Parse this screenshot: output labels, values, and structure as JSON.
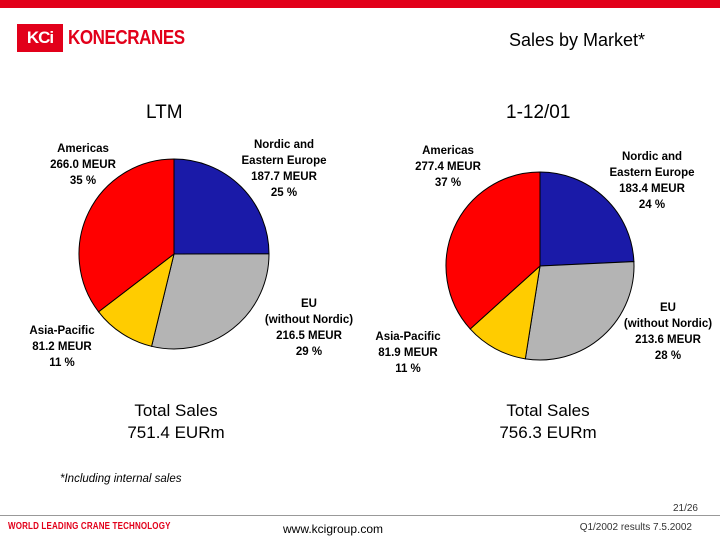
{
  "header": {
    "logo_mark": "KCi",
    "logo_text": "KONECRANES",
    "title": "Sales by Market*"
  },
  "chart_data": [
    {
      "type": "pie",
      "title": "LTM",
      "categories": [
        "Nordic and Eastern Europe",
        "EU (without Nordic)",
        "Asia-Pacific",
        "Americas"
      ],
      "values": [
        187.7,
        216.5,
        81.2,
        266.0
      ],
      "unit": "MEUR",
      "percents": [
        25,
        29,
        11,
        35
      ],
      "colors": [
        "#1a1aa8",
        "#b4b4b4",
        "#ffcc00",
        "#ff0000"
      ],
      "labels": [
        [
          "Nordic and",
          "Eastern Europe",
          "187.7 MEUR",
          "25 %"
        ],
        [
          "EU",
          "(without Nordic)",
          "216.5 MEUR",
          "29 %"
        ],
        [
          "Asia-Pacific",
          "81.2 MEUR",
          "11 %"
        ],
        [
          "Americas",
          "266.0 MEUR",
          "35 %"
        ]
      ],
      "total_label": "Total Sales",
      "total_value": "751.4 EURm"
    },
    {
      "type": "pie",
      "title": "1-12/01",
      "categories": [
        "Nordic and Eastern Europe",
        "EU (without Nordic)",
        "Asia-Pacific",
        "Americas"
      ],
      "values": [
        183.4,
        213.6,
        81.9,
        277.4
      ],
      "unit": "MEUR",
      "percents": [
        24,
        28,
        11,
        37
      ],
      "colors": [
        "#1a1aa8",
        "#b4b4b4",
        "#ffcc00",
        "#ff0000"
      ],
      "labels": [
        [
          "Nordic and",
          "Eastern Europe",
          "183.4 MEUR",
          "24 %"
        ],
        [
          "EU",
          "(without Nordic)",
          "213.6 MEUR",
          "28 %"
        ],
        [
          "Asia-Pacific",
          "81.9 MEUR",
          "11 %"
        ],
        [
          "Americas",
          "277.4 MEUR",
          "37 %"
        ]
      ],
      "total_label": "Total Sales",
      "total_value": "756.3 EURm"
    }
  ],
  "note": "*Including internal sales",
  "footer": {
    "page": "21/26",
    "tagline": "WORLD LEADING CRANE TECHNOLOGY",
    "url": "www.kcigroup.com",
    "right": "Q1/2002 results 7.5.2002"
  }
}
